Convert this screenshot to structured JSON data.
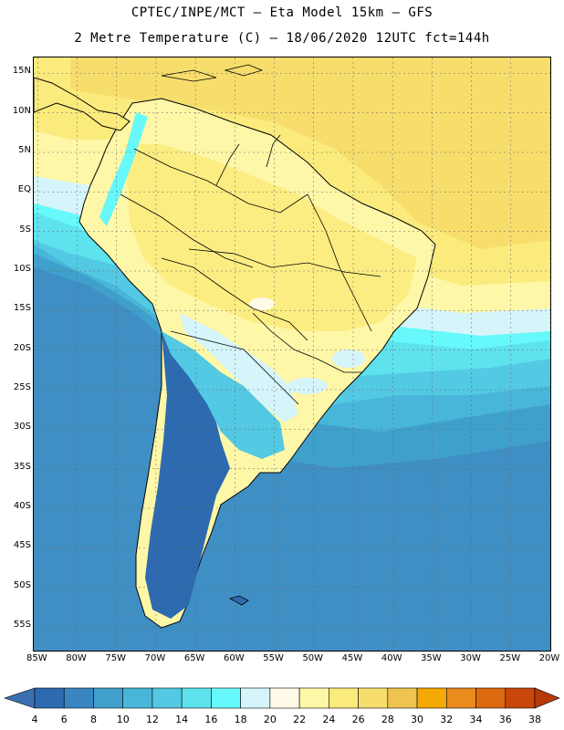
{
  "header": {
    "line1": "CPTEC/INPE/MCT –  Eta Model 15km – GFS",
    "line2": "2 Metre Temperature (C) – 18/06/2020 12UTC fct=144h"
  },
  "map": {
    "lat_labels": [
      "15N",
      "10N",
      "5N",
      "EQ",
      "5S",
      "10S",
      "15S",
      "20S",
      "25S",
      "30S",
      "35S",
      "40S",
      "45S",
      "50S",
      "55S"
    ],
    "lon_labels": [
      "85W",
      "80W",
      "75W",
      "70W",
      "65W",
      "60W",
      "55W",
      "50W",
      "45W",
      "40W",
      "35W",
      "30W",
      "25W",
      "20W"
    ],
    "lat_range": [
      -58,
      17
    ],
    "lon_range": [
      -85.5,
      -20
    ]
  },
  "legend": {
    "tick_labels": [
      "4",
      "6",
      "8",
      "10",
      "12",
      "14",
      "16",
      "18",
      "20",
      "22",
      "24",
      "26",
      "28",
      "30",
      "32",
      "34",
      "36",
      "38"
    ],
    "colors": [
      "#3a70b0",
      "#2e6aaf",
      "#3a86c2",
      "#40a0cc",
      "#47b6d9",
      "#53c9e3",
      "#5ee2ee",
      "#66f8fa",
      "#d5f5fb",
      "#fffbe8",
      "#fef7a8",
      "#fbeb7c",
      "#f7de6c",
      "#eec44f",
      "#f4a905",
      "#e98c1d",
      "#dd6a0f",
      "#c9470a",
      "#b53a08"
    ]
  }
}
